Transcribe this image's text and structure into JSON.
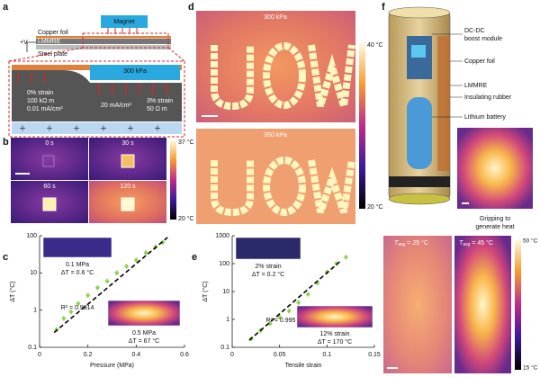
{
  "figure": {
    "panel_labels": [
      "a",
      "b",
      "c",
      "d",
      "e",
      "f"
    ],
    "a": {
      "voltage": "+V",
      "layers": [
        "Copper foil",
        "LMMRE",
        "Steel plate"
      ],
      "magnet": "Magnet",
      "pressure": "300 kPa",
      "left": [
        "0% strain",
        "100 kΩ m",
        "0.01 mA/cm²"
      ],
      "middle": "20 mA/cm²",
      "right": [
        "3% strain",
        "50 Ω m"
      ]
    },
    "b": {
      "times": [
        "0 s",
        "30 s",
        "60 s",
        "120 s"
      ],
      "colorbar": [
        "37 °C",
        "20 °C"
      ]
    },
    "d": {
      "pressures": [
        "300 kPa",
        "350 kPa"
      ],
      "colorbar": [
        "40 °C",
        "20 °C"
      ]
    },
    "f": {
      "module": [
        "DC-DC",
        "boost module"
      ],
      "parts": [
        "Copper foil",
        "LMMRE",
        "Insulating rubber",
        "Lithium battery"
      ],
      "caption": [
        "Gripping to",
        "generate heat"
      ],
      "temps": [
        [
          "T",
          "avg",
          " = 25 °C"
        ],
        [
          "T",
          "avg",
          " = 45 °C"
        ]
      ],
      "colorbar": [
        "50 °C",
        "15 °C"
      ]
    }
  },
  "chart_data": [
    {
      "type": "scatter",
      "xlabel": "Pressure (MPa)",
      "ylabel": "ΔT (°C)",
      "x": [
        0.07,
        0.1,
        0.13,
        0.16,
        0.2,
        0.24,
        0.28,
        0.32,
        0.36,
        0.4,
        0.44,
        0.48,
        0.51
      ],
      "values": [
        0.3,
        0.6,
        0.9,
        1.5,
        2.5,
        4,
        6,
        10,
        15,
        22,
        35,
        50,
        67
      ],
      "color": "#8fd14f",
      "xlim": [
        0,
        0.6
      ],
      "ylim": [
        0.1,
        100
      ],
      "xticks": [
        0,
        0.2,
        0.4,
        0.6
      ],
      "yticks": [
        0.1,
        1,
        10,
        100
      ],
      "log_y": true,
      "fit": {
        "x": [
          0.06,
          0.53
        ],
        "values": [
          0.25,
          90
        ]
      },
      "annotations": [
        "0.1 MPa",
        "ΔT = 0.6 °C",
        "R² = 0.9914",
        "0.5 MPa",
        "ΔT = 67 °C"
      ]
    },
    {
      "type": "scatter",
      "xlabel": "Tensile strain",
      "ylabel": "ΔT (°C)",
      "x": [
        0.02,
        0.03,
        0.04,
        0.05,
        0.06,
        0.07,
        0.08,
        0.09,
        0.1,
        0.11,
        0.12
      ],
      "values": [
        0.2,
        0.4,
        0.7,
        1.2,
        2,
        4,
        8,
        20,
        50,
        100,
        170
      ],
      "color": "#8fd14f",
      "xlim": [
        0,
        0.15
      ],
      "ylim": [
        0.1,
        1000
      ],
      "xticks": [
        0,
        0.05,
        0.1,
        0.15
      ],
      "yticks": [
        0.1,
        1,
        10,
        100,
        1000
      ],
      "log_y": true,
      "fit": {
        "x": [
          0.018,
          0.115
        ],
        "values": [
          0.18,
          130
        ]
      },
      "annotations": [
        "2% strain",
        "ΔT = 0.2 °C",
        "R² = 0.995",
        "12% strain",
        "ΔT = 170 °C"
      ]
    }
  ]
}
